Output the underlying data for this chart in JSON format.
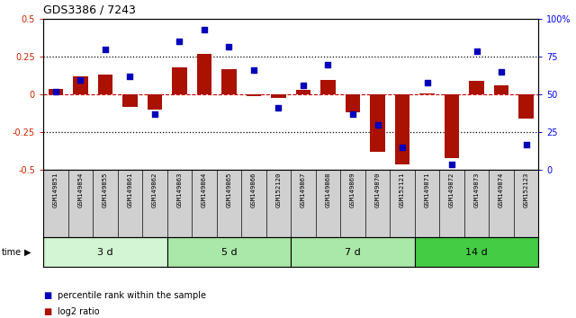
{
  "title": "GDS3386 / 7243",
  "samples": [
    "GSM149851",
    "GSM149854",
    "GSM149855",
    "GSM149861",
    "GSM149862",
    "GSM149863",
    "GSM149864",
    "GSM149865",
    "GSM149866",
    "GSM152120",
    "GSM149867",
    "GSM149868",
    "GSM149869",
    "GSM149870",
    "GSM152121",
    "GSM149871",
    "GSM149872",
    "GSM149873",
    "GSM149874",
    "GSM152123"
  ],
  "log2_ratio": [
    0.04,
    0.12,
    0.13,
    -0.08,
    -0.1,
    0.18,
    0.27,
    0.17,
    -0.01,
    -0.02,
    0.03,
    0.1,
    -0.12,
    -0.38,
    -0.46,
    0.01,
    -0.42,
    0.09,
    0.06,
    -0.16
  ],
  "percentile_rank": [
    52,
    60,
    80,
    62,
    37,
    85,
    93,
    82,
    66,
    41,
    56,
    70,
    37,
    30,
    15,
    58,
    4,
    79,
    65,
    17
  ],
  "groups": [
    {
      "label": "3 d",
      "start": 0,
      "end": 5,
      "color": "#d4f5d4"
    },
    {
      "label": "5 d",
      "start": 5,
      "end": 10,
      "color": "#aae8aa"
    },
    {
      "label": "7 d",
      "start": 10,
      "end": 15,
      "color": "#aae8aa"
    },
    {
      "label": "14 d",
      "start": 15,
      "end": 20,
      "color": "#44cc44"
    }
  ],
  "bar_color": "#aa1100",
  "dot_color": "#0000bb",
  "zero_line_color": "#cc0000",
  "dotted_line_color": "#000000",
  "ylim_left": [
    -0.5,
    0.5
  ],
  "ylim_right": [
    0,
    100
  ],
  "yticks_left": [
    -0.5,
    -0.25,
    0.0,
    0.25,
    0.5
  ],
  "yticks_right": [
    0,
    25,
    50,
    75,
    100
  ],
  "background_color": "#ffffff",
  "ax_bg": "#ffffff"
}
